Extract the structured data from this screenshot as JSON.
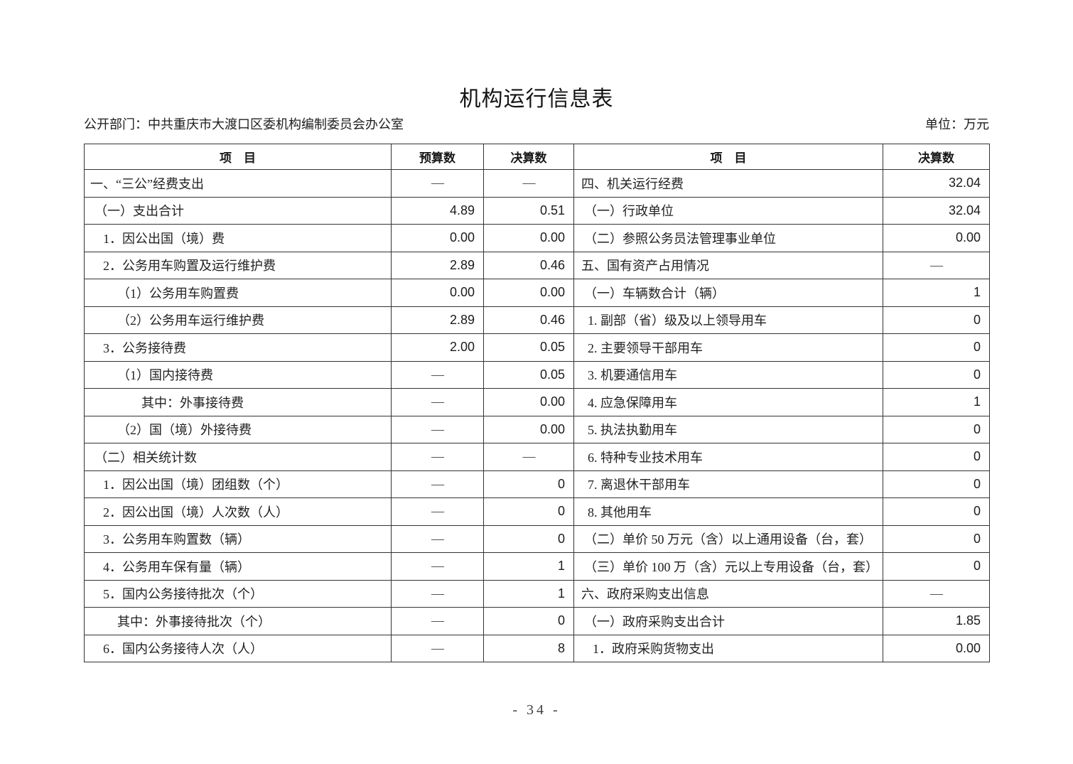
{
  "page": {
    "title": "机构运行信息表",
    "department": "公开部门：中共重庆市大渡口区委机构编制委员会办公室",
    "unit": "单位：万元",
    "page_number": "- 34 -"
  },
  "table": {
    "headers": [
      "项　目",
      "预算数",
      "决算数",
      "项　目",
      "决算数"
    ],
    "rows": [
      {
        "left": {
          "label": "一、“三公”经费支出",
          "indent": 0,
          "budget": "—",
          "final": "—"
        },
        "right": {
          "label": "四、机关运行经费",
          "indent": 0,
          "final": "32.04"
        }
      },
      {
        "left": {
          "label": "（一）支出合计",
          "indent": 1,
          "budget": "4.89",
          "final": "0.51"
        },
        "right": {
          "label": "（一）行政单位",
          "indent": 1,
          "final": "32.04"
        }
      },
      {
        "left": {
          "label": "1．因公出国（境）费",
          "indent": 2,
          "budget": "0.00",
          "final": "0.00"
        },
        "right": {
          "label": "（二）参照公务员法管理事业单位",
          "indent": 1,
          "final": "0.00"
        }
      },
      {
        "left": {
          "label": "2．公务用车购置及运行维护费",
          "indent": 2,
          "budget": "2.89",
          "final": "0.46"
        },
        "right": {
          "label": "五、国有资产占用情况",
          "indent": 0,
          "final": "—"
        }
      },
      {
        "left": {
          "label": "（1）公务用车购置费",
          "indent": 3,
          "budget": "0.00",
          "final": "0.00"
        },
        "right": {
          "label": "（一）车辆数合计（辆）",
          "indent": 1,
          "final": "1"
        }
      },
      {
        "left": {
          "label": "（2）公务用车运行维护费",
          "indent": 3,
          "budget": "2.89",
          "final": "0.46"
        },
        "right": {
          "label": "1. 副部（省）级及以上领导用车",
          "indent": 2,
          "final": "0"
        }
      },
      {
        "left": {
          "label": "3．公务接待费",
          "indent": 2,
          "budget": "2.00",
          "final": "0.05"
        },
        "right": {
          "label": "2. 主要领导干部用车",
          "indent": 2,
          "final": "0"
        }
      },
      {
        "left": {
          "label": "（1）国内接待费",
          "indent": 3,
          "budget": "—",
          "final": "0.05"
        },
        "right": {
          "label": "3. 机要通信用车",
          "indent": 2,
          "final": "0"
        }
      },
      {
        "left": {
          "label": "其中：外事接待费",
          "indent": 4,
          "budget": "—",
          "final": "0.00"
        },
        "right": {
          "label": "4. 应急保障用车",
          "indent": 2,
          "final": "1"
        }
      },
      {
        "left": {
          "label": "（2）国（境）外接待费",
          "indent": 3,
          "budget": "—",
          "final": "0.00"
        },
        "right": {
          "label": "5. 执法执勤用车",
          "indent": 2,
          "final": "0"
        }
      },
      {
        "left": {
          "label": "（二）相关统计数",
          "indent": 1,
          "budget": "—",
          "final": "—"
        },
        "right": {
          "label": "6. 特种专业技术用车",
          "indent": 2,
          "final": "0"
        }
      },
      {
        "left": {
          "label": "1．因公出国（境）团组数（个）",
          "indent": 2,
          "budget": "—",
          "final": "0"
        },
        "right": {
          "label": "7. 离退休干部用车",
          "indent": 2,
          "final": "0"
        }
      },
      {
        "left": {
          "label": "2．因公出国（境）人次数（人）",
          "indent": 2,
          "budget": "—",
          "final": "0"
        },
        "right": {
          "label": "8. 其他用车",
          "indent": 2,
          "final": "0"
        }
      },
      {
        "left": {
          "label": "3．公务用车购置数（辆）",
          "indent": 2,
          "budget": "—",
          "final": "0"
        },
        "right": {
          "label": "（二）单价 50 万元（含）以上通用设备（台，套）",
          "indent": 1,
          "final": "0"
        }
      },
      {
        "left": {
          "label": "4．公务用车保有量（辆）",
          "indent": 2,
          "budget": "—",
          "final": "1"
        },
        "right": {
          "label": "（三）单价 100 万（含）元以上专用设备（台，套）",
          "indent": 1,
          "final": "0"
        }
      },
      {
        "left": {
          "label": "5．国内公务接待批次（个）",
          "indent": 2,
          "budget": "—",
          "final": "1"
        },
        "right": {
          "label": "六、政府采购支出信息",
          "indent": 0,
          "final": "—"
        }
      },
      {
        "left": {
          "label": "其中：外事接待批次（个）",
          "indent": 3,
          "budget": "—",
          "final": "0"
        },
        "right": {
          "label": "（一）政府采购支出合计",
          "indent": 1,
          "final": "1.85"
        }
      },
      {
        "left": {
          "label": "6．国内公务接待人次（人）",
          "indent": 2,
          "budget": "—",
          "final": "8"
        },
        "right": {
          "label": "1．政府采购货物支出",
          "indent": 3,
          "final": "0.00"
        }
      }
    ]
  }
}
